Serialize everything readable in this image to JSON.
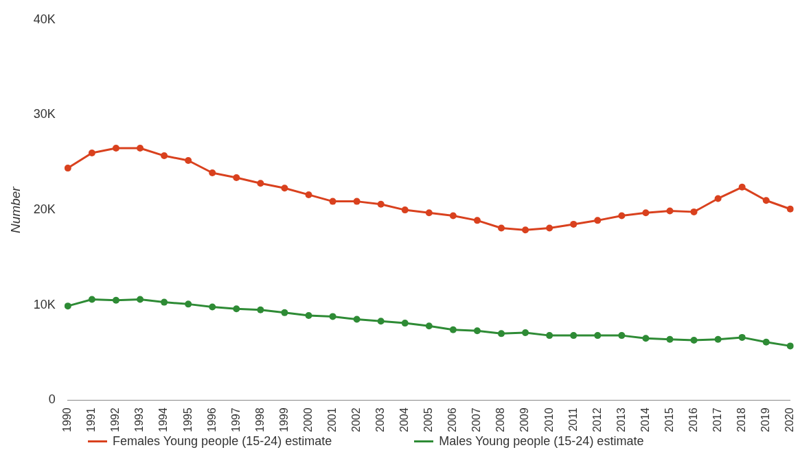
{
  "chart_data": {
    "type": "line",
    "ylabel": "Number",
    "categories": [
      "1990",
      "1991",
      "1992",
      "1993",
      "1994",
      "1995",
      "1996",
      "1997",
      "1998",
      "1999",
      "2000",
      "2001",
      "2002",
      "2003",
      "2004",
      "2005",
      "2006",
      "2007",
      "2008",
      "2009",
      "2010",
      "2011",
      "2012",
      "2013",
      "2014",
      "2015",
      "2016",
      "2017",
      "2018",
      "2019",
      "2020"
    ],
    "series": [
      {
        "name": "Females Young people (15-24) estimate",
        "color": "#d9411e",
        "values": [
          24400,
          26000,
          26500,
          26500,
          25700,
          25200,
          23900,
          23400,
          22800,
          22300,
          21600,
          20900,
          20900,
          20600,
          20000,
          19700,
          19400,
          18900,
          18100,
          17900,
          18100,
          18500,
          18900,
          19400,
          19700,
          19900,
          19800,
          21200,
          22400,
          21000,
          20100
        ]
      },
      {
        "name": "Males Young people (15-24)  estimate",
        "color": "#2e8b35",
        "values": [
          9900,
          10600,
          10500,
          10600,
          10300,
          10100,
          9800,
          9600,
          9500,
          9200,
          8900,
          8800,
          8500,
          8300,
          8100,
          7800,
          7400,
          7300,
          7000,
          7100,
          6800,
          6800,
          6800,
          6800,
          6500,
          6400,
          6300,
          6400,
          6600,
          6100,
          5700
        ]
      }
    ],
    "ylim": [
      0,
      40000
    ],
    "yticks": [
      {
        "value": 0,
        "label": "0"
      },
      {
        "value": 10000,
        "label": "10K"
      },
      {
        "value": 20000,
        "label": "20K"
      },
      {
        "value": 30000,
        "label": "30K"
      },
      {
        "value": 40000,
        "label": "40K"
      }
    ],
    "grid": false,
    "legend": "bottom",
    "marker": "circle",
    "line_style": "solid"
  }
}
